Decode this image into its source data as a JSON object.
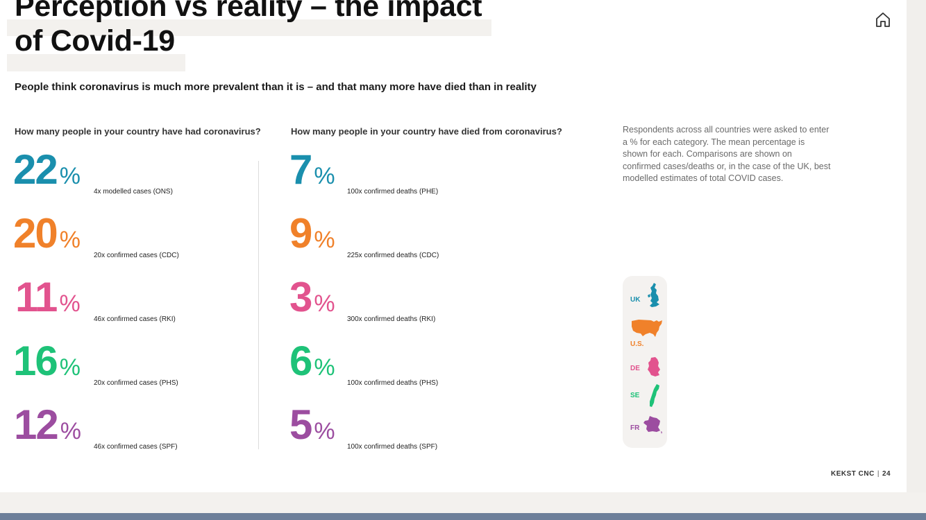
{
  "title": "Perception vs reality – the impact of Covid-19",
  "subtitle": "People think coronavirus is much more prevalent than it is – and that many more have died than in reality",
  "cases": {
    "question": "How many people in your country have had coronavirus?",
    "rows": [
      {
        "value": "22",
        "unit": "%",
        "note": "4x modelled cases (ONS)",
        "color": "#1a8fad"
      },
      {
        "value": "20",
        "unit": "%",
        "note": "20x confirmed cases (CDC)",
        "color": "#f0812a"
      },
      {
        "value": "11",
        "unit": "%",
        "note": "46x confirmed cases (RKI)",
        "color": "#e2538e"
      },
      {
        "value": "16",
        "unit": "%",
        "note": "20x confirmed cases (PHS)",
        "color": "#1ec278"
      },
      {
        "value": "12",
        "unit": "%",
        "note": "46x confirmed cases (SPF)",
        "color": "#9c4da0"
      }
    ]
  },
  "deaths": {
    "question": "How many people in your country have died from coronavirus?",
    "rows": [
      {
        "value": "7",
        "unit": "%",
        "note": "100x confirmed deaths (PHE)",
        "color": "#1a8fad"
      },
      {
        "value": "9",
        "unit": "%",
        "note": "225x confirmed deaths (CDC)",
        "color": "#f0812a"
      },
      {
        "value": "3",
        "unit": "%",
        "note": "300x confirmed deaths (RKI)",
        "color": "#e2538e"
      },
      {
        "value": "6",
        "unit": "%",
        "note": "100x confirmed deaths (PHS)",
        "color": "#1ec278"
      },
      {
        "value": "5",
        "unit": "%",
        "note": "100x confirmed deaths (SPF)",
        "color": "#9c4da0"
      }
    ]
  },
  "methodology": "Respondents across all countries were asked to enter a % for each category. The mean percentage is shown for each. Comparisons are shown on confirmed cases/deaths or, in the case of the UK, best modelled estimates of total COVID cases.",
  "legend": [
    {
      "code": "UK",
      "color": "#1a8fad",
      "icon": "uk-map-icon"
    },
    {
      "code": "U.S.",
      "color": "#f0812a",
      "icon": "us-map-icon"
    },
    {
      "code": "DE",
      "color": "#e2538e",
      "icon": "germany-map-icon"
    },
    {
      "code": "SE",
      "color": "#1ec278",
      "icon": "sweden-map-icon"
    },
    {
      "code": "FR",
      "color": "#9c4da0",
      "icon": "france-map-icon"
    }
  ],
  "footer": {
    "brand": "KEKST CNC",
    "separator": "|",
    "page": "24"
  },
  "icons": {
    "home": "home-icon"
  }
}
